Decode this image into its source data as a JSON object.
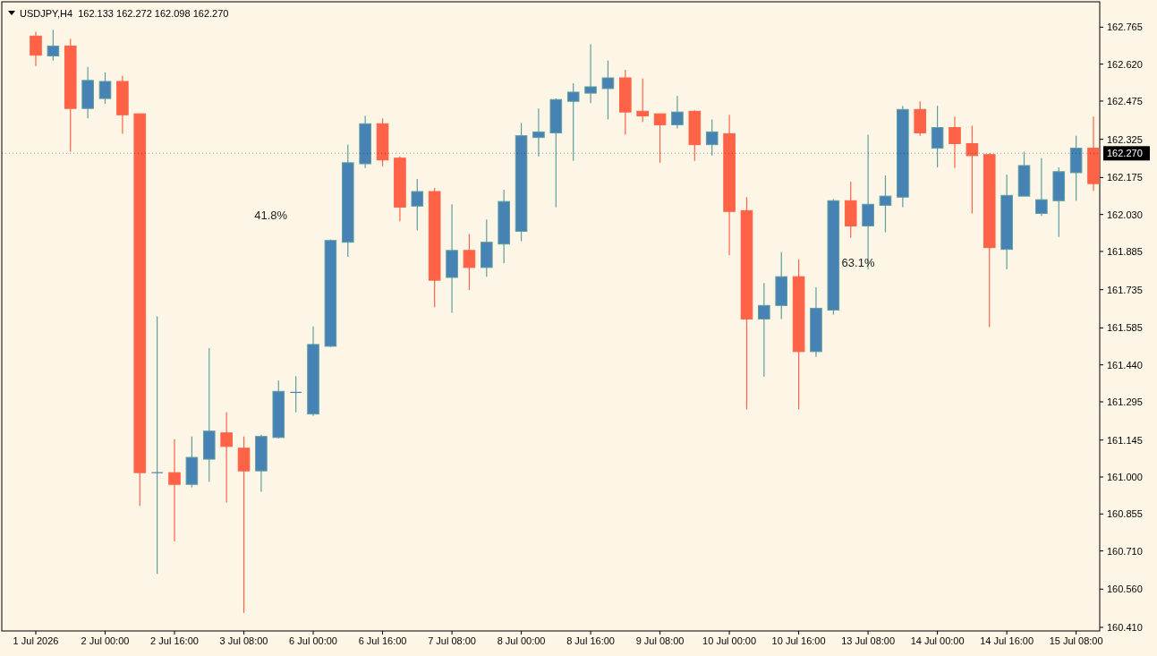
{
  "chart_data": {
    "type": "candlestick",
    "title": "USDJPY,H4  162.133 162.272 162.098 162.270",
    "categories": [
      "1 Jul 2026",
      null,
      null,
      null,
      "2 Jul 00:00",
      null,
      null,
      null,
      "2 Jul 16:00",
      null,
      null,
      null,
      "3 Jul 08:00",
      null,
      null,
      null,
      "6 Jul 00:00",
      null,
      null,
      null,
      "6 Jul 16:00",
      null,
      null,
      null,
      "7 Jul 08:00",
      null,
      null,
      null,
      "8 Jul 00:00",
      null,
      null,
      null,
      "8 Jul 16:00",
      null,
      null,
      null,
      "9 Jul 08:00",
      null,
      null,
      null,
      "10 Jul 00:00",
      null,
      null,
      null,
      "10 Jul 16:00",
      null,
      null,
      null,
      "13 Jul 08:00",
      null,
      null,
      null,
      "14 Jul 00:00",
      null,
      null,
      null,
      "14 Jul 16:00",
      null,
      null,
      null,
      "15 Jul 08:00",
      null
    ],
    "ohlc": [
      [
        162.73,
        162.747,
        162.613,
        162.655
      ],
      [
        162.652,
        162.754,
        162.634,
        162.691
      ],
      [
        162.691,
        162.719,
        162.276,
        162.446
      ],
      [
        162.446,
        162.609,
        162.407,
        162.556
      ],
      [
        162.485,
        162.588,
        162.464,
        162.552
      ],
      [
        162.552,
        162.574,
        162.347,
        162.421
      ],
      [
        162.425,
        162.425,
        160.886,
        161.017
      ],
      [
        161.017,
        161.63,
        160.62,
        161.017
      ],
      [
        161.017,
        161.148,
        160.747,
        160.971
      ],
      [
        160.971,
        161.159,
        160.96,
        161.077
      ],
      [
        161.07,
        161.506,
        160.981,
        161.18
      ],
      [
        161.173,
        161.254,
        160.9,
        161.12
      ],
      [
        161.113,
        161.159,
        160.467,
        161.024
      ],
      [
        161.024,
        161.166,
        160.942,
        161.159
      ],
      [
        161.155,
        161.378,
        161.151,
        161.336
      ],
      [
        161.332,
        161.396,
        161.254,
        161.332
      ],
      [
        161.247,
        161.591,
        161.24,
        161.52
      ],
      [
        161.513,
        161.932,
        161.51,
        161.928
      ],
      [
        161.921,
        162.304,
        161.864,
        162.233
      ],
      [
        162.229,
        162.417,
        162.212,
        162.386
      ],
      [
        162.386,
        162.407,
        162.219,
        162.244
      ],
      [
        162.251,
        162.258,
        162.003,
        162.059
      ],
      [
        162.063,
        162.169,
        161.967,
        162.12
      ],
      [
        162.12,
        162.134,
        161.666,
        161.772
      ],
      [
        161.783,
        162.07,
        161.644,
        161.889
      ],
      [
        161.889,
        161.953,
        161.733,
        161.822
      ],
      [
        161.822,
        162.01,
        161.786,
        161.921
      ],
      [
        161.914,
        162.127,
        161.839,
        162.081
      ],
      [
        161.964,
        162.389,
        161.925,
        162.339
      ],
      [
        162.332,
        162.446,
        162.258,
        162.354
      ],
      [
        162.35,
        162.485,
        162.059,
        162.481
      ],
      [
        162.474,
        162.545,
        162.24,
        162.51
      ],
      [
        162.506,
        162.698,
        162.467,
        162.531
      ],
      [
        162.524,
        162.634,
        162.403,
        162.566
      ],
      [
        162.566,
        162.598,
        162.343,
        162.432
      ],
      [
        162.435,
        162.563,
        162.393,
        162.417
      ],
      [
        162.425,
        162.425,
        162.233,
        162.382
      ],
      [
        162.382,
        162.495,
        162.368,
        162.432
      ],
      [
        162.435,
        162.439,
        162.24,
        162.304
      ],
      [
        162.304,
        162.403,
        162.261,
        162.354
      ],
      [
        162.347,
        162.421,
        161.871,
        162.042
      ],
      [
        162.045,
        162.098,
        161.265,
        161.62
      ],
      [
        161.62,
        161.761,
        161.393,
        161.673
      ],
      [
        161.673,
        161.882,
        161.62,
        161.786
      ],
      [
        161.786,
        161.854,
        161.265,
        161.492
      ],
      [
        161.492,
        161.744,
        161.471,
        161.662
      ],
      [
        161.655,
        162.091,
        161.637,
        162.084
      ],
      [
        162.084,
        162.159,
        161.939,
        161.985
      ],
      [
        161.985,
        162.343,
        161.815,
        162.07
      ],
      [
        162.066,
        162.183,
        161.96,
        162.102
      ],
      [
        162.098,
        162.456,
        162.059,
        162.442
      ],
      [
        162.442,
        162.474,
        162.339,
        162.35
      ],
      [
        162.29,
        162.456,
        162.215,
        162.371
      ],
      [
        162.371,
        162.414,
        162.212,
        162.308
      ],
      [
        162.308,
        162.378,
        162.034,
        162.261
      ],
      [
        162.265,
        162.269,
        161.588,
        161.9
      ],
      [
        161.893,
        162.187,
        161.815,
        162.105
      ],
      [
        162.102,
        162.276,
        162.102,
        162.222
      ],
      [
        162.034,
        162.251,
        162.024,
        162.088
      ],
      [
        162.084,
        162.215,
        161.942,
        162.198
      ],
      [
        162.194,
        162.339,
        162.084,
        162.29
      ],
      [
        162.29,
        162.414,
        162.123,
        162.151
      ]
    ],
    "colors": [
      "#ff6347",
      "#4682b4",
      "#ff6347",
      "#4682b4",
      "#4682b4",
      "#ff6347",
      "#ff6347",
      "#4682b4",
      "#ff6347",
      "#4682b4",
      "#4682b4",
      "#ff6347",
      "#ff6347",
      "#4682b4",
      "#4682b4",
      "#4682b4",
      "#4682b4",
      "#4682b4",
      "#4682b4",
      "#4682b4",
      "#ff6347",
      "#ff6347",
      "#4682b4",
      "#ff6347",
      "#4682b4",
      "#ff6347",
      "#4682b4",
      "#4682b4",
      "#4682b4",
      "#4682b4",
      "#4682b4",
      "#4682b4",
      "#4682b4",
      "#4682b4",
      "#ff6347",
      "#ff6347",
      "#ff6347",
      "#4682b4",
      "#ff6347",
      "#4682b4",
      "#ff6347",
      "#ff6347",
      "#4682b4",
      "#4682b4",
      "#ff6347",
      "#4682b4",
      "#4682b4",
      "#ff6347",
      "#4682b4",
      "#4682b4",
      "#4682b4",
      "#ff6347",
      "#4682b4",
      "#ff6347",
      "#ff6347",
      "#ff6347",
      "#4682b4",
      "#4682b4",
      "#4682b4",
      "#4682b4",
      "#4682b4",
      "#ff6347"
    ],
    "ylim": [
      160.396,
      162.861
    ],
    "yticks": [
      {
        "value": 160.41,
        "label": "160.410"
      },
      {
        "value": 160.56,
        "label": "160.560"
      },
      {
        "value": 160.71,
        "label": "160.710"
      },
      {
        "value": 160.855,
        "label": "160.855"
      },
      {
        "value": 161.0,
        "label": "161.000"
      },
      {
        "value": 161.145,
        "label": "161.145"
      },
      {
        "value": 161.295,
        "label": "161.295"
      },
      {
        "value": 161.44,
        "label": "161.440"
      },
      {
        "value": 161.585,
        "label": "161.585"
      },
      {
        "value": 161.735,
        "label": "161.735"
      },
      {
        "value": 161.885,
        "label": "161.885"
      },
      {
        "value": 162.03,
        "label": "162.030"
      },
      {
        "value": 162.175,
        "label": "162.175"
      },
      {
        "value": 162.325,
        "label": "162.325"
      },
      {
        "value": 162.475,
        "label": "162.475"
      },
      {
        "value": 162.62,
        "label": "162.620"
      },
      {
        "value": 162.765,
        "label": "162.765"
      }
    ],
    "ref_lines": [
      {
        "axis": "y",
        "value": 162.27,
        "label": "162.270",
        "color": "#000000"
      }
    ],
    "annotations": [
      "41.8%",
      "63.1%"
    ]
  }
}
